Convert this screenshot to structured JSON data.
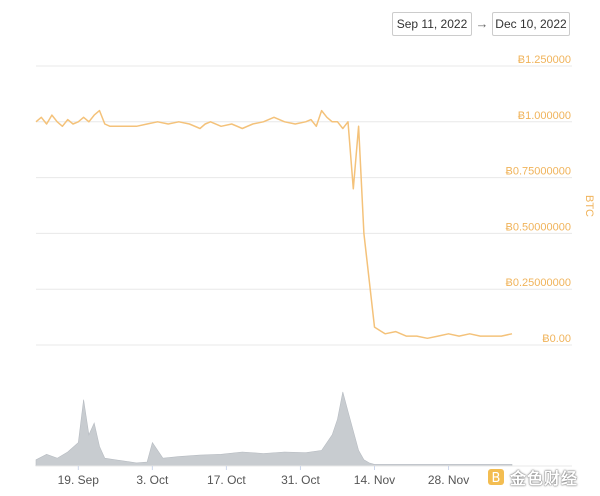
{
  "date_range": {
    "from": "Sep 11, 2022",
    "arrow": "→",
    "to": "Dec 10, 2022"
  },
  "colors": {
    "price_line": "#f4c27a",
    "price_label": "#f0b35a",
    "grid": "#e8e8e8",
    "volume": "#c8ccd0",
    "axis_text": "#555555"
  },
  "watermark": {
    "text": "金色财经",
    "icon": "coin-logo-icon"
  },
  "chart_data": [
    {
      "type": "line",
      "title": "",
      "ylabel": "BTC",
      "ylim": [
        0,
        1.25
      ],
      "y_ticks": [
        {
          "value": 1.25,
          "label": "Ƀ1.250000"
        },
        {
          "value": 1.0,
          "label": "Ƀ1.000000"
        },
        {
          "value": 0.75,
          "label": "Ƀ0.75000000"
        },
        {
          "value": 0.5,
          "label": "Ƀ0.50000000"
        },
        {
          "value": 0.25,
          "label": "Ƀ0.25000000"
        },
        {
          "value": 0.0,
          "label": "Ƀ0.00"
        }
      ],
      "x_ticks": [
        "19. Sep",
        "3. Oct",
        "17. Oct",
        "31. Oct",
        "14. Nov",
        "28. Nov"
      ],
      "grid": true,
      "series": [
        {
          "x": [
            "2022-09-11",
            "2022-09-12",
            "2022-09-13",
            "2022-09-14",
            "2022-09-15",
            "2022-09-16",
            "2022-09-17",
            "2022-09-18",
            "2022-09-19",
            "2022-09-20",
            "2022-09-21",
            "2022-09-22",
            "2022-09-23",
            "2022-09-24",
            "2022-09-25",
            "2022-09-26",
            "2022-09-28",
            "2022-09-30",
            "2022-10-02",
            "2022-10-04",
            "2022-10-06",
            "2022-10-08",
            "2022-10-10",
            "2022-10-12",
            "2022-10-13",
            "2022-10-14",
            "2022-10-16",
            "2022-10-18",
            "2022-10-20",
            "2022-10-22",
            "2022-10-24",
            "2022-10-26",
            "2022-10-28",
            "2022-10-30",
            "2022-11-01",
            "2022-11-02",
            "2022-11-03",
            "2022-11-04",
            "2022-11-05",
            "2022-11-06",
            "2022-11-07",
            "2022-11-08",
            "2022-11-09",
            "2022-11-10",
            "2022-11-11",
            "2022-11-12",
            "2022-11-14",
            "2022-11-16",
            "2022-11-18",
            "2022-11-20",
            "2022-11-22",
            "2022-11-24",
            "2022-11-26",
            "2022-11-28",
            "2022-11-30",
            "2022-12-02",
            "2022-12-04",
            "2022-12-06",
            "2022-12-08",
            "2022-12-10"
          ],
          "values": [
            1.0,
            1.02,
            0.99,
            1.03,
            1.0,
            0.98,
            1.01,
            0.99,
            1.0,
            1.02,
            1.0,
            1.03,
            1.05,
            0.99,
            0.98,
            0.98,
            0.98,
            0.98,
            0.99,
            1.0,
            0.99,
            1.0,
            0.99,
            0.97,
            0.99,
            1.0,
            0.98,
            0.99,
            0.97,
            0.99,
            1.0,
            1.02,
            1.0,
            0.99,
            1.0,
            1.01,
            0.98,
            1.05,
            1.02,
            1.0,
            1.0,
            0.97,
            1.0,
            0.7,
            0.98,
            0.5,
            0.08,
            0.05,
            0.06,
            0.04,
            0.04,
            0.03,
            0.04,
            0.05,
            0.04,
            0.05,
            0.04,
            0.04,
            0.04,
            0.05
          ]
        }
      ]
    },
    {
      "type": "area",
      "title": "",
      "x_ticks": [
        "19. Sep",
        "3. Oct",
        "17. Oct",
        "31. Oct",
        "14. Nov",
        "28. Nov"
      ],
      "series": [
        {
          "x": [
            "2022-09-11",
            "2022-09-13",
            "2022-09-15",
            "2022-09-17",
            "2022-09-19",
            "2022-09-20",
            "2022-09-21",
            "2022-09-22",
            "2022-09-23",
            "2022-09-24",
            "2022-09-26",
            "2022-09-28",
            "2022-09-30",
            "2022-10-02",
            "2022-10-03",
            "2022-10-05",
            "2022-10-08",
            "2022-10-12",
            "2022-10-16",
            "2022-10-20",
            "2022-10-24",
            "2022-10-28",
            "2022-11-01",
            "2022-11-04",
            "2022-11-06",
            "2022-11-07",
            "2022-11-08",
            "2022-11-09",
            "2022-11-10",
            "2022-11-11",
            "2022-11-12",
            "2022-11-13",
            "2022-11-14",
            "2022-11-18",
            "2022-11-22",
            "2022-11-26",
            "2022-11-30",
            "2022-12-04",
            "2022-12-08",
            "2022-12-10"
          ],
          "values": [
            0.08,
            0.15,
            0.1,
            0.18,
            0.3,
            0.85,
            0.4,
            0.55,
            0.25,
            0.1,
            0.08,
            0.06,
            0.04,
            0.05,
            0.3,
            0.1,
            0.12,
            0.14,
            0.15,
            0.18,
            0.16,
            0.18,
            0.17,
            0.2,
            0.4,
            0.6,
            0.95,
            0.7,
            0.45,
            0.2,
            0.08,
            0.04,
            0.02,
            0.02,
            0.02,
            0.02,
            0.02,
            0.02,
            0.02,
            0.02
          ]
        }
      ]
    }
  ]
}
